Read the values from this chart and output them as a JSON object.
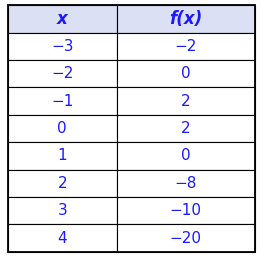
{
  "headers": [
    "x",
    "f(x)"
  ],
  "x_values": [
    "−3",
    "−2",
    "−1",
    "0",
    "1",
    "2",
    "3",
    "4"
  ],
  "fx_values": [
    "−2",
    "0",
    "2",
    "2",
    "0",
    "−8",
    "−10",
    "−20"
  ],
  "header_bg": "#dce0f5",
  "header_text_color": "#1a1aff",
  "data_text_color": "#1a1aff",
  "row_bg": "#ffffff",
  "border_color": "#000000",
  "header_fontsize": 12,
  "data_fontsize": 11,
  "fig_width": 2.63,
  "fig_height": 2.57,
  "dpi": 100
}
